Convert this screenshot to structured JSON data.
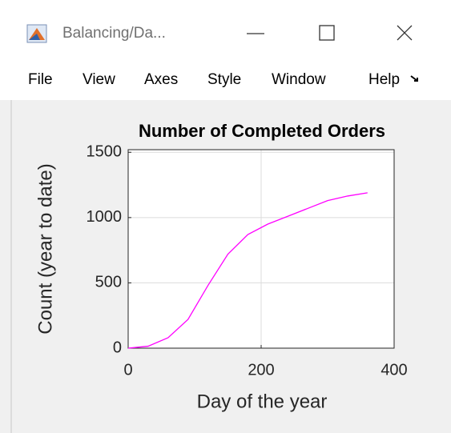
{
  "window": {
    "title": "Balancing/Da...",
    "menu": [
      "File",
      "View",
      "Axes",
      "Style",
      "Window",
      "Help"
    ]
  },
  "chart_data": {
    "type": "line",
    "title": "Number of Completed Orders",
    "xlabel": "Day of the year",
    "ylabel": "Count (year to date)",
    "x": [
      0,
      10,
      30,
      60,
      90,
      120,
      150,
      180,
      210,
      240,
      270,
      300,
      330,
      360
    ],
    "values": [
      0,
      5,
      15,
      80,
      220,
      480,
      720,
      870,
      950,
      1010,
      1070,
      1130,
      1165,
      1190
    ],
    "color": "#ff00ff",
    "xlim": [
      0,
      400
    ],
    "xticks": [
      0,
      200,
      400
    ],
    "ylim": [
      0,
      1520
    ],
    "yticks": [
      0,
      500,
      1000,
      1500
    ],
    "grid": true
  }
}
